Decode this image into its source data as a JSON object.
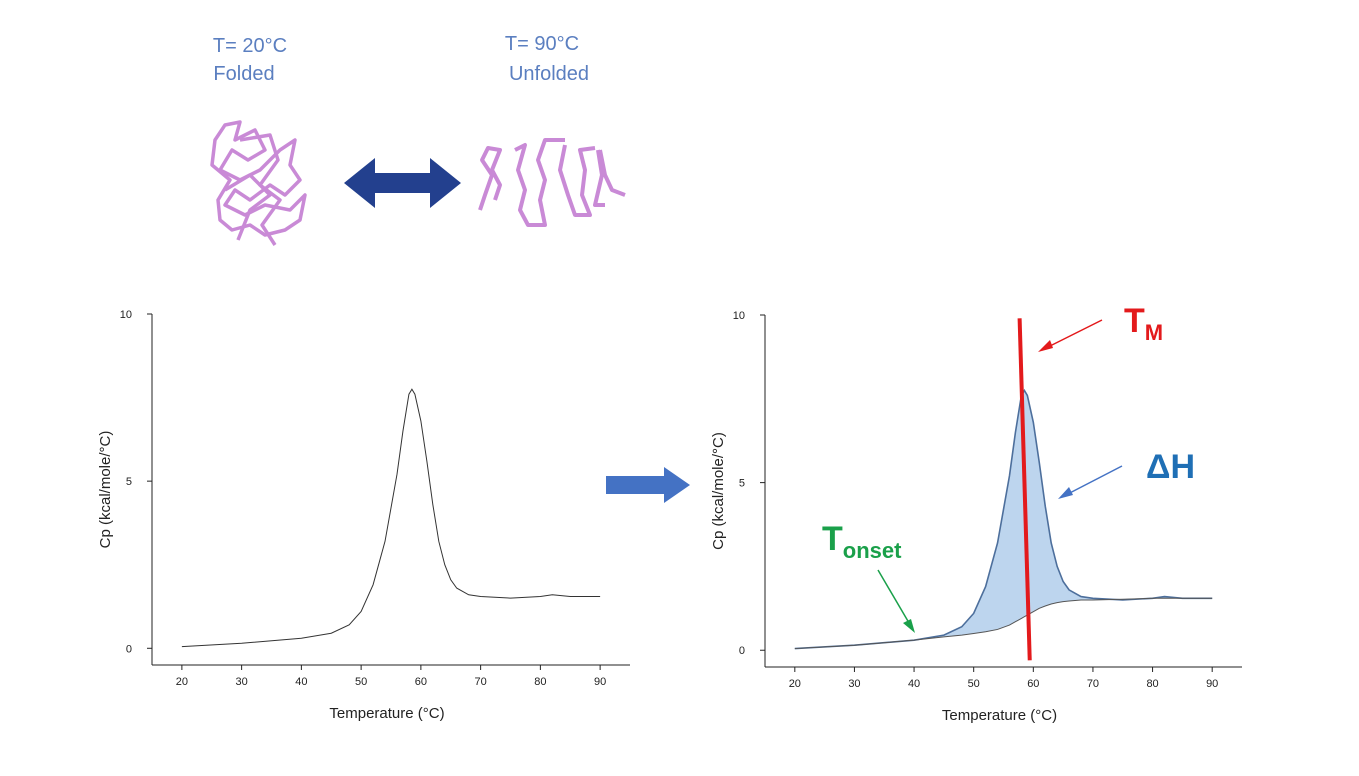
{
  "states": [
    {
      "temperature": "T= 20°C",
      "label": "Folded"
    },
    {
      "temperature": "T= 90°C",
      "label": "Unfolded"
    }
  ],
  "chart_data": [
    {
      "type": "line",
      "x_label": "Temperature (°C)",
      "y_label": "Cp (kcal/mole/°C)",
      "x": [
        20,
        30,
        40,
        45,
        48,
        50,
        52,
        54,
        56,
        57,
        58,
        58.5,
        59,
        60,
        61,
        62,
        63,
        64,
        65,
        66,
        68,
        70,
        75,
        80,
        82,
        85,
        90
      ],
      "series": [
        {
          "color": "#333333",
          "values": [
            0.05,
            0.15,
            0.3,
            0.45,
            0.7,
            1.1,
            1.9,
            3.2,
            5.2,
            6.5,
            7.6,
            7.75,
            7.6,
            6.8,
            5.6,
            4.3,
            3.2,
            2.5,
            2.05,
            1.8,
            1.6,
            1.55,
            1.5,
            1.55,
            1.6,
            1.55,
            1.55
          ]
        }
      ],
      "xlim": [
        15,
        95
      ],
      "ylim": [
        -0.5,
        10
      ],
      "xticks": [
        20,
        30,
        40,
        50,
        60,
        70,
        80,
        90
      ],
      "yticks": [
        0,
        5,
        10
      ]
    },
    {
      "type": "area",
      "x_label": "Temperature (°C)",
      "y_label": "Cp (kcal/mole/°C)",
      "x": [
        20,
        30,
        40,
        45,
        48,
        50,
        52,
        54,
        56,
        57,
        58,
        58.5,
        59,
        60,
        61,
        62,
        63,
        64,
        65,
        66,
        68,
        70,
        75,
        80,
        82,
        85,
        90
      ],
      "series": [
        {
          "color": "#4d6f9c",
          "fill": "#bdd5ee",
          "values": [
            0.05,
            0.15,
            0.3,
            0.45,
            0.7,
            1.1,
            1.9,
            3.2,
            5.2,
            6.5,
            7.6,
            7.75,
            7.6,
            6.8,
            5.6,
            4.3,
            3.2,
            2.5,
            2.05,
            1.8,
            1.6,
            1.55,
            1.5,
            1.55,
            1.6,
            1.55,
            1.55
          ]
        },
        {
          "color": "#555555",
          "values": [
            0.05,
            0.15,
            0.3,
            0.4,
            0.45,
            0.5,
            0.55,
            0.62,
            0.75,
            0.85,
            0.95,
            1.0,
            1.05,
            1.15,
            1.25,
            1.32,
            1.38,
            1.42,
            1.45,
            1.47,
            1.5,
            1.5,
            1.52,
            1.55,
            1.55,
            1.55,
            1.55
          ]
        }
      ],
      "xlim": [
        15,
        95
      ],
      "ylim": [
        -0.5,
        10
      ],
      "xticks": [
        20,
        30,
        40,
        50,
        60,
        70,
        80,
        90
      ],
      "yticks": [
        0,
        5,
        10
      ],
      "tm_line": {
        "x": [
          57.7,
          59.4
        ],
        "y": [
          9.9,
          -0.3
        ],
        "color": "#e31a1c"
      },
      "annotations": [
        {
          "text": "T",
          "sub": "M",
          "color": "#e31a1c"
        },
        {
          "text": "ΔH",
          "color": "#1f6fb5"
        },
        {
          "text": "T",
          "sub": "onset",
          "color": "#1aa04a"
        }
      ]
    }
  ]
}
